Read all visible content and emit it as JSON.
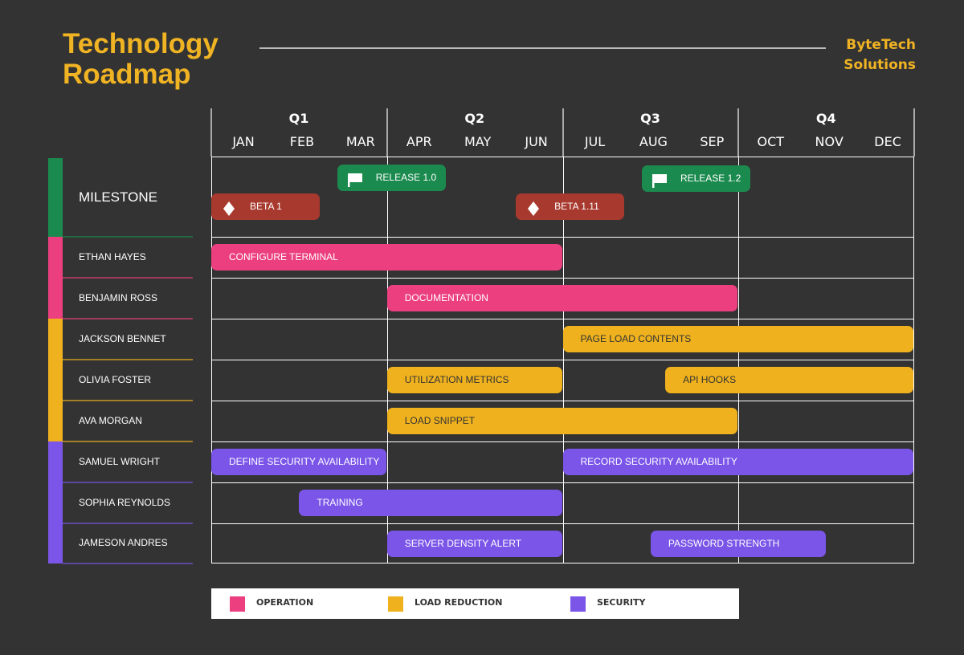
{
  "header": {
    "title_line1": "Technology",
    "title_line2": "Roadmap",
    "company_line1": "ByteTech",
    "company_line2": "Solutions"
  },
  "colors": {
    "background": "#333333",
    "accent": "#f0b323",
    "milestone": "#1b8a4e",
    "beta": "#a8392e",
    "operation": "#ec3f7f",
    "load_reduction": "#efb21e",
    "security": "#7a55e8"
  },
  "chart_data": {
    "type": "gantt",
    "quarters": [
      "Q1",
      "Q2",
      "Q3",
      "Q4"
    ],
    "months": [
      "JAN",
      "FEB",
      "MAR",
      "APR",
      "MAY",
      "JUN",
      "JUL",
      "AUG",
      "SEP",
      "OCT",
      "NOV",
      "DEC"
    ],
    "rows": [
      {
        "label": "MILESTONE",
        "category": "milestone"
      },
      {
        "label": "ETHAN HAYES",
        "category": "operation"
      },
      {
        "label": "BENJAMIN ROSS",
        "category": "operation"
      },
      {
        "label": "JACKSON BENNET",
        "category": "load_reduction"
      },
      {
        "label": "OLIVIA FOSTER",
        "category": "load_reduction"
      },
      {
        "label": "AVA MORGAN",
        "category": "load_reduction"
      },
      {
        "label": "SAMUEL WRIGHT",
        "category": "security"
      },
      {
        "label": "SOPHIA REYNOLDS",
        "category": "security"
      },
      {
        "label": "JAMESON ANDRES",
        "category": "security"
      }
    ],
    "milestones": [
      {
        "label": "RELEASE 1.0",
        "icon": "flag-icon",
        "type": "release",
        "start_month": 2.15,
        "end_month": 4.0
      },
      {
        "label": "BETA 1",
        "icon": "diamond-icon",
        "type": "beta",
        "start_month": 0,
        "end_month": 1.85
      },
      {
        "label": "BETA 1.11",
        "icon": "diamond-icon",
        "type": "beta",
        "start_month": 5.2,
        "end_month": 7.05
      },
      {
        "label": "RELEASE 1.2",
        "icon": "flag-icon",
        "type": "release",
        "start_month": 7.35,
        "end_month": 9.2
      }
    ],
    "tasks": [
      {
        "row": 1,
        "label": "CONFIGURE TERMINAL",
        "category": "operation",
        "start_month": 0,
        "end_month": 6
      },
      {
        "row": 2,
        "label": "DOCUMENTATION",
        "category": "operation",
        "start_month": 3,
        "end_month": 9
      },
      {
        "row": 3,
        "label": "PAGE LOAD CONTENTS",
        "category": "load_reduction",
        "start_month": 6,
        "end_month": 12
      },
      {
        "row": 4,
        "label": "UTILIZATION METRICS",
        "category": "load_reduction",
        "start_month": 3,
        "end_month": 6
      },
      {
        "row": 4,
        "label": "API HOOKS",
        "category": "load_reduction",
        "start_month": 7.75,
        "end_month": 12
      },
      {
        "row": 5,
        "label": "LOAD SNIPPET",
        "category": "load_reduction",
        "start_month": 3,
        "end_month": 9
      },
      {
        "row": 6,
        "label": "DEFINE SECURITY AVAILABILITY",
        "category": "security",
        "start_month": 0,
        "end_month": 3
      },
      {
        "row": 6,
        "label": "RECORD SECURITY AVAILABILITY",
        "category": "security",
        "start_month": 6,
        "end_month": 12
      },
      {
        "row": 7,
        "label": "TRAINING",
        "category": "security",
        "start_month": 1.5,
        "end_month": 6
      },
      {
        "row": 8,
        "label": "SERVER DENSITY ALERT",
        "category": "security",
        "start_month": 3,
        "end_month": 6
      },
      {
        "row": 8,
        "label": "PASSWORD STRENGTH",
        "category": "security",
        "start_month": 7.5,
        "end_month": 10.5
      }
    ],
    "legend": [
      {
        "label": "OPERATION",
        "category": "operation"
      },
      {
        "label": "LOAD REDUCTION",
        "category": "load_reduction"
      },
      {
        "label": "SECURITY",
        "category": "security"
      }
    ]
  }
}
